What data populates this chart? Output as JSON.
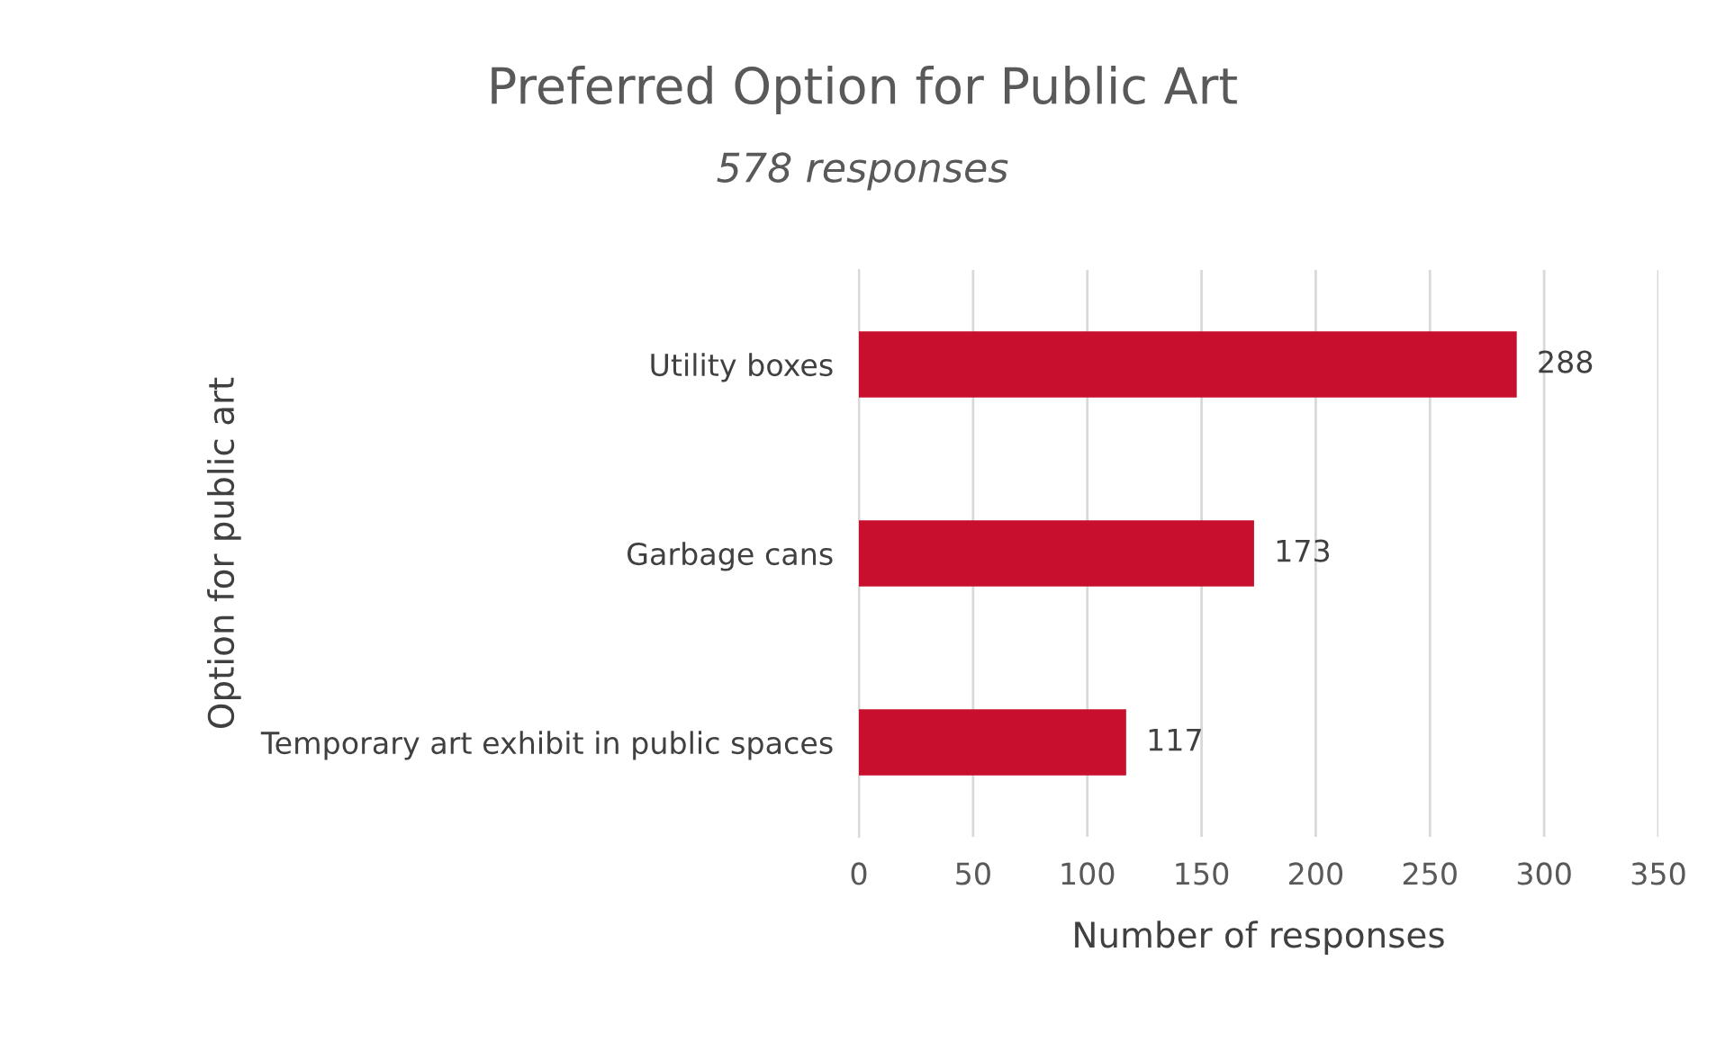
{
  "chart_data": {
    "type": "bar",
    "orientation": "horizontal",
    "title": "Preferred Option for Public Art",
    "subtitle": "578 responses",
    "xlabel": "Number of responses",
    "ylabel": "Option for public art",
    "categories": [
      "Utility boxes",
      "Garbage cans",
      "Temporary art exhibit in public spaces"
    ],
    "values": [
      288,
      173,
      117
    ],
    "color": "#c8102e",
    "xlim": [
      0,
      350
    ],
    "xticks": [
      0,
      50,
      100,
      150,
      200,
      250,
      300,
      350
    ],
    "grid": "x",
    "data_labels": true
  }
}
